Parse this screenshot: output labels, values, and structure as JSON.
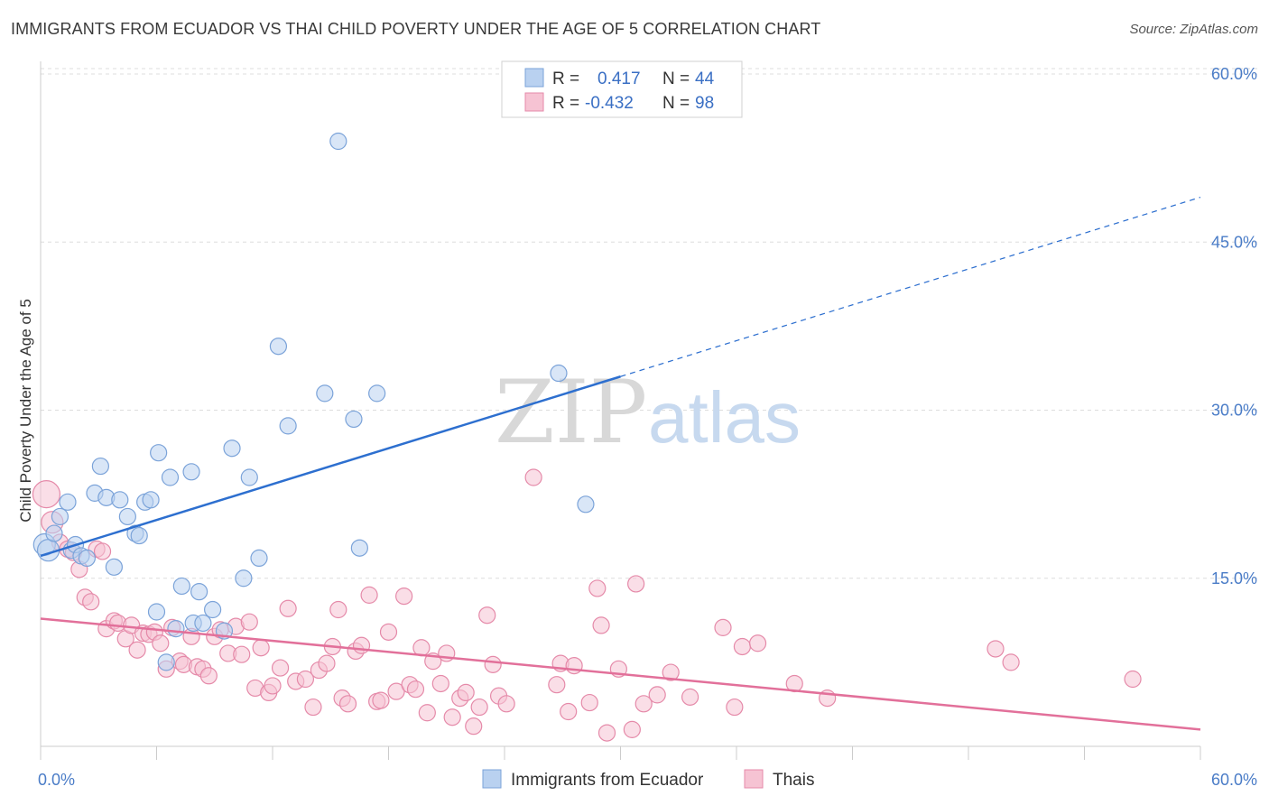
{
  "title": "IMMIGRANTS FROM ECUADOR VS THAI CHILD POVERTY UNDER THE AGE OF 5 CORRELATION CHART",
  "source": "Source: ZipAtlas.com",
  "watermark": {
    "zip": "ZIP",
    "atlas": "atlas"
  },
  "colors": {
    "blue_fill": "#b9d1f0",
    "blue_stroke": "#7ba3d9",
    "blue_line": "#2d6fcf",
    "pink_fill": "#f6c3d3",
    "pink_stroke": "#e58aa9",
    "pink_line": "#e2709a",
    "tick": "#4a7cc7",
    "grid": "#dddddd"
  },
  "legend": {
    "rows": [
      {
        "r_label": "R =",
        "r_value": "0.417",
        "n_label": "N =",
        "n_value": "44"
      },
      {
        "r_label": "R =",
        "r_value": "-0.432",
        "n_label": "N =",
        "n_value": "98"
      }
    ]
  },
  "chart_data": {
    "type": "scatter",
    "xlabel": "",
    "ylabel": "Child Poverty Under the Age of 5",
    "xlim": [
      0,
      60
    ],
    "ylim": [
      0,
      60
    ],
    "x_tick_labels": [
      "0.0%",
      "60.0%"
    ],
    "y_ticks": [
      15,
      30,
      45,
      60
    ],
    "y_tick_labels": [
      "15.0%",
      "30.0%",
      "45.0%",
      "60.0%"
    ],
    "grid": true,
    "legend_position": "top-center",
    "series": [
      {
        "name": "Immigrants from Ecuador",
        "r": 0.417,
        "n": 44,
        "trend": {
          "x0": 0,
          "y0": 17.0,
          "x1": 30,
          "y1": 33.0,
          "dashed_to_x": 60,
          "dashed_to_y": 49.0
        },
        "points": [
          [
            0.2,
            18.0
          ],
          [
            0.4,
            17.5
          ],
          [
            0.7,
            19.0
          ],
          [
            1.0,
            20.5
          ],
          [
            1.4,
            21.8
          ],
          [
            1.6,
            17.5
          ],
          [
            1.8,
            18.0
          ],
          [
            2.1,
            17.0
          ],
          [
            2.4,
            16.8
          ],
          [
            2.8,
            22.6
          ],
          [
            3.1,
            25.0
          ],
          [
            3.4,
            22.2
          ],
          [
            3.8,
            16.0
          ],
          [
            4.1,
            22.0
          ],
          [
            4.5,
            20.5
          ],
          [
            4.9,
            19.0
          ],
          [
            5.1,
            18.8
          ],
          [
            5.4,
            21.8
          ],
          [
            5.7,
            22.0
          ],
          [
            6.0,
            12.0
          ],
          [
            6.1,
            26.2
          ],
          [
            6.5,
            7.5
          ],
          [
            6.7,
            24.0
          ],
          [
            7.0,
            10.5
          ],
          [
            7.3,
            14.3
          ],
          [
            7.8,
            24.5
          ],
          [
            7.9,
            11.0
          ],
          [
            8.2,
            13.8
          ],
          [
            8.4,
            11.0
          ],
          [
            8.9,
            12.2
          ],
          [
            9.5,
            10.3
          ],
          [
            9.9,
            26.6
          ],
          [
            10.5,
            15.0
          ],
          [
            10.8,
            24.0
          ],
          [
            11.3,
            16.8
          ],
          [
            12.3,
            35.7
          ],
          [
            12.8,
            28.6
          ],
          [
            14.7,
            31.5
          ],
          [
            15.4,
            54.0
          ],
          [
            16.2,
            29.2
          ],
          [
            16.5,
            17.7
          ],
          [
            17.4,
            31.5
          ],
          [
            26.8,
            33.3
          ],
          [
            28.2,
            21.6
          ]
        ]
      },
      {
        "name": "Thais",
        "r": -0.432,
        "n": 98,
        "trend": {
          "x0": 0,
          "y0": 11.4,
          "x1": 60,
          "y1": 1.5
        },
        "points": [
          [
            0.3,
            22.5
          ],
          [
            0.6,
            20.0
          ],
          [
            1.0,
            18.2
          ],
          [
            1.4,
            17.6
          ],
          [
            1.7,
            17.3
          ],
          [
            2.0,
            15.8
          ],
          [
            2.3,
            13.3
          ],
          [
            2.6,
            12.9
          ],
          [
            2.9,
            17.6
          ],
          [
            3.2,
            17.4
          ],
          [
            3.4,
            10.5
          ],
          [
            3.8,
            11.2
          ],
          [
            4.0,
            11.0
          ],
          [
            4.4,
            9.6
          ],
          [
            4.7,
            10.8
          ],
          [
            5.0,
            8.6
          ],
          [
            5.3,
            10.1
          ],
          [
            5.6,
            10.0
          ],
          [
            5.9,
            10.2
          ],
          [
            6.2,
            9.2
          ],
          [
            6.5,
            6.9
          ],
          [
            6.8,
            10.6
          ],
          [
            7.2,
            7.6
          ],
          [
            7.4,
            7.3
          ],
          [
            7.8,
            9.8
          ],
          [
            8.1,
            7.1
          ],
          [
            8.4,
            6.9
          ],
          [
            8.7,
            6.3
          ],
          [
            9.0,
            9.8
          ],
          [
            9.3,
            10.4
          ],
          [
            9.7,
            8.3
          ],
          [
            10.1,
            10.7
          ],
          [
            10.4,
            8.2
          ],
          [
            10.8,
            11.1
          ],
          [
            11.1,
            5.2
          ],
          [
            11.4,
            8.8
          ],
          [
            11.8,
            4.8
          ],
          [
            12.0,
            5.4
          ],
          [
            12.4,
            7.0
          ],
          [
            12.8,
            12.3
          ],
          [
            13.2,
            5.8
          ],
          [
            13.7,
            6.0
          ],
          [
            14.1,
            3.5
          ],
          [
            14.4,
            6.8
          ],
          [
            14.8,
            7.4
          ],
          [
            15.1,
            8.9
          ],
          [
            15.4,
            12.2
          ],
          [
            15.6,
            4.3
          ],
          [
            15.9,
            3.8
          ],
          [
            16.3,
            8.5
          ],
          [
            16.6,
            9.0
          ],
          [
            17.0,
            13.5
          ],
          [
            17.4,
            4.0
          ],
          [
            17.6,
            4.1
          ],
          [
            18.0,
            10.2
          ],
          [
            18.4,
            4.9
          ],
          [
            18.8,
            13.4
          ],
          [
            19.1,
            5.5
          ],
          [
            19.4,
            5.1
          ],
          [
            19.7,
            8.8
          ],
          [
            20.0,
            3.0
          ],
          [
            20.3,
            7.6
          ],
          [
            20.7,
            5.6
          ],
          [
            21.0,
            8.3
          ],
          [
            21.3,
            2.6
          ],
          [
            21.7,
            4.3
          ],
          [
            22.0,
            4.8
          ],
          [
            22.4,
            1.8
          ],
          [
            22.7,
            3.5
          ],
          [
            23.1,
            11.7
          ],
          [
            23.4,
            7.3
          ],
          [
            23.7,
            4.5
          ],
          [
            24.1,
            3.8
          ],
          [
            25.5,
            24.0
          ],
          [
            26.7,
            5.5
          ],
          [
            26.9,
            7.4
          ],
          [
            27.3,
            3.1
          ],
          [
            27.6,
            7.2
          ],
          [
            28.4,
            3.9
          ],
          [
            28.8,
            14.1
          ],
          [
            29.0,
            10.8
          ],
          [
            29.3,
            1.2
          ],
          [
            29.9,
            6.9
          ],
          [
            30.6,
            1.5
          ],
          [
            30.8,
            14.5
          ],
          [
            31.2,
            3.8
          ],
          [
            31.9,
            4.6
          ],
          [
            32.6,
            6.6
          ],
          [
            33.6,
            4.4
          ],
          [
            35.3,
            10.6
          ],
          [
            35.9,
            3.5
          ],
          [
            36.3,
            8.9
          ],
          [
            37.1,
            9.2
          ],
          [
            39.0,
            5.6
          ],
          [
            40.7,
            4.3
          ],
          [
            49.4,
            8.7
          ],
          [
            50.2,
            7.5
          ],
          [
            56.5,
            6.0
          ]
        ]
      }
    ]
  },
  "bottom_legend": [
    "Immigrants from Ecuador",
    "Thais"
  ]
}
